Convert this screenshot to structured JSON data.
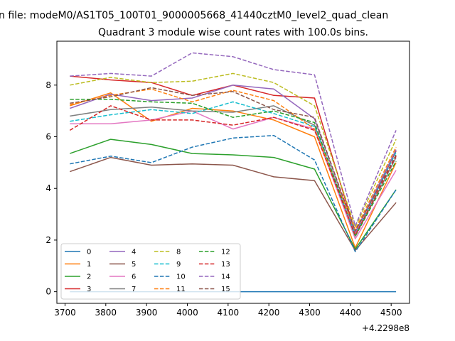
{
  "chart_data": {
    "type": "line",
    "suptitle": "n file: modeM0/AS1T05_100T01_9000005668_41440cztM0_level2_quad_clean",
    "title": "Quadrant 3 module wise count rates with 100.0s bins.",
    "xlabel": "",
    "ylabel": "",
    "x_offset_label": "+4.2298e8",
    "x": [
      3712,
      3812,
      3912,
      4012,
      4112,
      4212,
      4312,
      4412,
      4512
    ],
    "xlim": [
      3680,
      4545
    ],
    "ylim": [
      -0.45,
      9.7
    ],
    "x_ticks": [
      "3700",
      "3800",
      "3900",
      "4000",
      "4100",
      "4200",
      "4300",
      "4400",
      "4500"
    ],
    "y_ticks": [
      "0",
      "2",
      "4",
      "6",
      "8"
    ],
    "grid": false,
    "legend_position": "lower-left",
    "series": [
      {
        "name": "0",
        "color": "#1f77b4",
        "dash": "solid",
        "values": [
          0,
          0,
          0,
          0,
          0,
          0,
          0,
          0,
          0
        ]
      },
      {
        "name": "1",
        "color": "#ff7f0e",
        "dash": "solid",
        "values": [
          7.2,
          7.7,
          6.6,
          7.1,
          7.0,
          6.65,
          6.0,
          1.7,
          5.0
        ]
      },
      {
        "name": "2",
        "color": "#2ca02c",
        "dash": "solid",
        "values": [
          5.35,
          5.9,
          5.7,
          5.35,
          5.3,
          5.2,
          4.75,
          1.65,
          3.95
        ]
      },
      {
        "name": "3",
        "color": "#d62728",
        "dash": "solid",
        "values": [
          8.35,
          8.2,
          8.1,
          7.6,
          8.0,
          7.6,
          7.5,
          2.3,
          5.45
        ]
      },
      {
        "name": "4",
        "color": "#9467bd",
        "dash": "solid",
        "values": [
          7.1,
          7.65,
          7.4,
          7.5,
          8.0,
          7.85,
          6.7,
          2.3,
          5.5
        ]
      },
      {
        "name": "5",
        "color": "#8c564b",
        "dash": "solid",
        "values": [
          4.65,
          5.2,
          4.9,
          4.95,
          4.9,
          4.45,
          4.3,
          1.6,
          3.45
        ]
      },
      {
        "name": "6",
        "color": "#e377c2",
        "dash": "solid",
        "values": [
          6.5,
          6.5,
          6.65,
          7.0,
          6.3,
          6.75,
          6.3,
          2.05,
          4.7
        ]
      },
      {
        "name": "7",
        "color": "#7f7f7f",
        "dash": "solid",
        "values": [
          6.8,
          7.05,
          7.15,
          7.0,
          6.95,
          7.2,
          6.45,
          2.15,
          5.2
        ]
      },
      {
        "name": "8",
        "color": "#bcbd22",
        "dash": "dashed",
        "values": [
          8.0,
          8.3,
          8.1,
          8.15,
          8.45,
          8.1,
          7.2,
          2.5,
          5.9
        ]
      },
      {
        "name": "9",
        "color": "#17becf",
        "dash": "dashed",
        "values": [
          6.6,
          6.85,
          7.05,
          6.9,
          7.35,
          6.9,
          6.4,
          2.2,
          5.4
        ]
      },
      {
        "name": "10",
        "color": "#1f77b4",
        "dash": "dashed",
        "values": [
          4.95,
          5.25,
          5.0,
          5.6,
          5.95,
          6.05,
          5.1,
          1.55,
          3.95
        ]
      },
      {
        "name": "11",
        "color": "#ff7f0e",
        "dash": "dashed",
        "values": [
          7.25,
          7.6,
          7.85,
          7.35,
          7.8,
          7.4,
          6.3,
          2.4,
          5.6
        ]
      },
      {
        "name": "12",
        "color": "#2ca02c",
        "dash": "dashed",
        "values": [
          7.45,
          7.45,
          7.35,
          7.3,
          6.75,
          7.0,
          6.55,
          2.15,
          5.05
        ]
      },
      {
        "name": "13",
        "color": "#d62728",
        "dash": "dashed",
        "values": [
          6.25,
          7.2,
          6.65,
          6.65,
          6.45,
          6.75,
          6.25,
          2.2,
          5.25
        ]
      },
      {
        "name": "14",
        "color": "#9467bd",
        "dash": "dashed",
        "values": [
          8.35,
          8.45,
          8.35,
          9.25,
          9.1,
          8.6,
          8.4,
          2.55,
          6.25
        ]
      },
      {
        "name": "15",
        "color": "#8c564b",
        "dash": "dashed",
        "values": [
          7.3,
          7.55,
          7.9,
          7.6,
          7.75,
          7.05,
          6.75,
          2.35,
          5.3
        ]
      }
    ]
  }
}
